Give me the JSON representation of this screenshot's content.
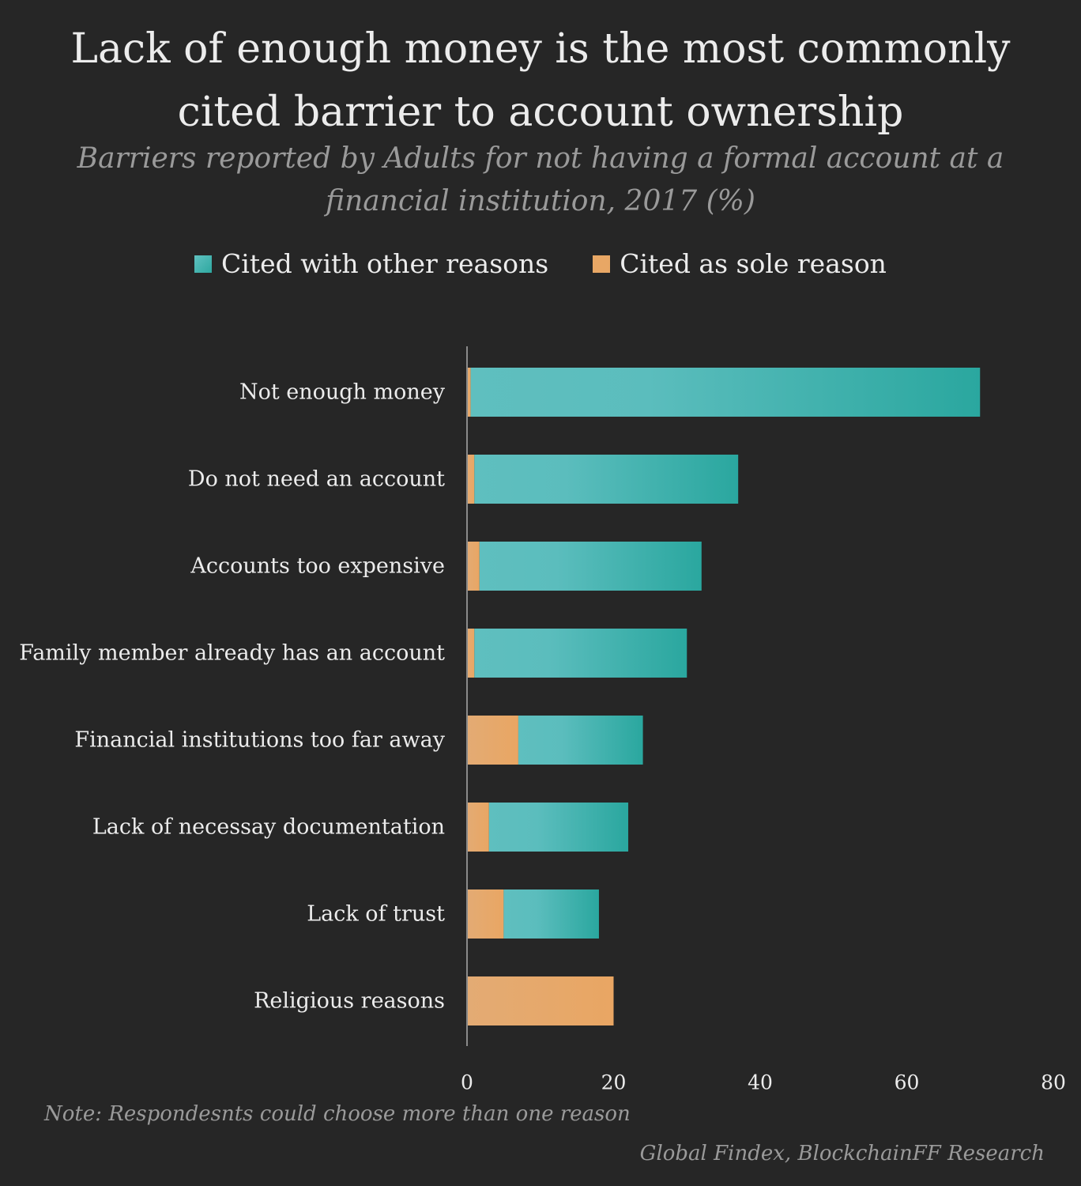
{
  "title": {
    "line1": "Lack of enough money is the most commonly",
    "line2": "cited barrier to account ownership"
  },
  "subtitle": {
    "line1": "Barriers reported by Adults for not having a formal account at a",
    "line2": "financial institution, 2017 (%)"
  },
  "legend": {
    "other_label": "Cited with other reasons",
    "sole_label": "Cited as sole reason"
  },
  "colors": {
    "background": "#262626",
    "teal_light": "#5fbfbf",
    "teal_dark": "#2aa79f",
    "orange": "#e8a765",
    "axis": "#8a8a8a"
  },
  "chart_data": {
    "type": "bar",
    "orientation": "horizontal",
    "stacked": true,
    "categories": [
      "Not enough money",
      "Do not need an account",
      "Accounts too expensive",
      "Family member already has an account",
      "Financial institutions too far away",
      "Lack of necessay documentation",
      "Lack of trust",
      "Religious reasons"
    ],
    "series": [
      {
        "name": "Cited as sole reason",
        "color": "#e8a765",
        "values": [
          0.5,
          1,
          1.7,
          1,
          7,
          3,
          5,
          20
        ]
      },
      {
        "name": "Cited with other reasons",
        "color": "#3fb3ad",
        "values": [
          69.5,
          36,
          30.3,
          29,
          17,
          19,
          13,
          0
        ]
      }
    ],
    "xlim": [
      0,
      80
    ],
    "xticks": [
      0,
      20,
      40,
      60,
      80
    ],
    "xtick_labels": [
      "0",
      "20",
      "40",
      "60",
      "80"
    ],
    "grid": false,
    "legend_position": "top-center"
  },
  "note": "Note: Respondesnts could choose more than one reason",
  "source": "Global Findex, BlockchainFF Research"
}
